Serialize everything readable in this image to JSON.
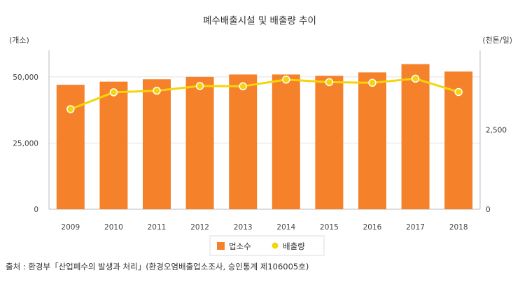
{
  "chart_data": {
    "type": "bar",
    "title": "폐수배출시설 및 배출량 추이",
    "left_unit": "(개소)",
    "right_unit": "(천톤/일)",
    "categories": [
      "2009",
      "2010",
      "2011",
      "2012",
      "2013",
      "2014",
      "2015",
      "2016",
      "2017",
      "2018"
    ],
    "series": [
      {
        "name": "업소수",
        "type": "bar",
        "axis": "left",
        "color": "#f5822a",
        "values": [
          47000,
          48200,
          49100,
          50000,
          50900,
          50900,
          50400,
          51700,
          54800,
          52000
        ]
      },
      {
        "name": "배출량",
        "type": "line",
        "axis": "right",
        "color": "#f6d40d",
        "values": [
          3150,
          3680,
          3730,
          3880,
          3870,
          4080,
          4000,
          3980,
          4110,
          3690
        ]
      }
    ],
    "left_axis": {
      "min": 0,
      "max": 60000,
      "ticks": [
        0,
        25000,
        50000
      ],
      "tick_labels": [
        "0",
        "25,000",
        "50,000"
      ]
    },
    "right_axis": {
      "min": 0,
      "max": 5000,
      "ticks": [
        0,
        2500
      ],
      "tick_labels": [
        "0",
        "2,500"
      ]
    },
    "grid": true,
    "legend_position": "bottom",
    "source": "출처 : 환경부「산업폐수의 발생과 처리」(환경오염배출업소조사, 승인통계 제106005호)"
  }
}
